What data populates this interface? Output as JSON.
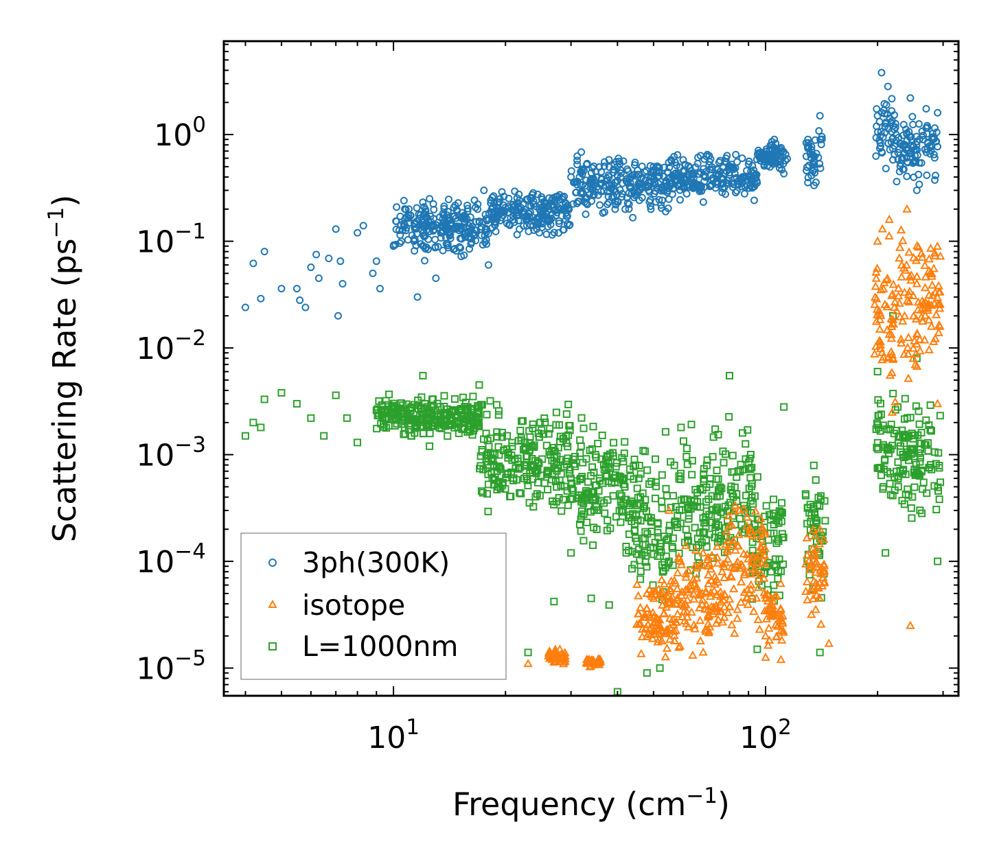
{
  "chart_data": {
    "type": "scatter",
    "xscale": "log",
    "yscale": "log",
    "xlim": [
      3.5,
      330
    ],
    "ylim": [
      5.5e-06,
      7.5
    ],
    "xlabel": {
      "text": "Frequency (cm",
      "sup": "−1",
      "tail": ")"
    },
    "ylabel": {
      "text": "Scattering Rate (ps",
      "sup": "−1",
      "tail": ")"
    },
    "xticks": [
      {
        "value": 10,
        "base": "10",
        "exp": "1"
      },
      {
        "value": 100,
        "base": "10",
        "exp": "2"
      }
    ],
    "yticks": [
      {
        "value": 1e-05,
        "base": "10",
        "exp": "−5"
      },
      {
        "value": 0.0001,
        "base": "10",
        "exp": "−4"
      },
      {
        "value": 0.001,
        "base": "10",
        "exp": "−3"
      },
      {
        "value": 0.01,
        "base": "10",
        "exp": "−2"
      },
      {
        "value": 0.1,
        "base": "10",
        "exp": "−1"
      },
      {
        "value": 1,
        "base": "10",
        "exp": "0"
      }
    ],
    "legend": {
      "position": "lower-left"
    },
    "series": [
      {
        "name": "3ph(300K)",
        "marker": "circle",
        "color": "#1f77b4",
        "approx_points": [
          [
            4,
            0.024
          ],
          [
            4.2,
            0.062
          ],
          [
            4.4,
            0.029
          ],
          [
            4.5,
            0.08
          ],
          [
            5,
            0.036
          ],
          [
            5.5,
            0.036
          ],
          [
            5.6,
            0.028
          ],
          [
            5.8,
            0.024
          ],
          [
            6,
            0.057
          ],
          [
            6.2,
            0.075
          ],
          [
            6.3,
            0.045
          ],
          [
            6.7,
            0.069
          ],
          [
            7,
            0.13
          ],
          [
            7.1,
            0.02
          ],
          [
            7.2,
            0.065
          ],
          [
            7.3,
            0.04
          ],
          [
            8,
            0.12
          ],
          [
            8.3,
            0.14
          ],
          [
            8.8,
            0.05
          ],
          [
            9,
            0.065
          ],
          [
            9.2,
            0.036
          ],
          [
            10,
            0.09
          ],
          [
            10.5,
            0.1
          ],
          [
            11,
            0.2
          ],
          [
            11.6,
            0.03
          ],
          [
            12.5,
            0.25
          ],
          [
            13,
            0.045
          ],
          [
            14,
            0.19
          ],
          [
            17.5,
            0.3
          ],
          [
            18,
            0.06
          ],
          [
            25,
            0.26
          ],
          [
            30,
            0.4
          ],
          [
            40,
            0.5
          ],
          [
            50,
            0.5
          ],
          [
            60,
            0.45
          ],
          [
            75,
            0.55
          ],
          [
            90,
            0.4
          ],
          [
            100,
            0.6
          ],
          [
            112,
            0.43
          ],
          [
            130,
            0.9
          ],
          [
            140,
            1.5
          ],
          [
            200,
            1.5
          ],
          [
            205,
            3.8
          ],
          [
            220,
            1.2
          ],
          [
            245,
            2.2
          ],
          [
            255,
            0.3
          ],
          [
            290,
            1.6
          ]
        ],
        "bands": [
          {
            "x": [
              10,
              18
            ],
            "ylo": 0.06,
            "yhi": 0.3
          },
          {
            "x": [
              18,
              30
            ],
            "ylo": 0.1,
            "yhi": 0.35
          },
          {
            "x": [
              30,
              55
            ],
            "ylo": 0.15,
            "yhi": 0.75
          },
          {
            "x": [
              55,
              95
            ],
            "ylo": 0.2,
            "yhi": 0.8
          },
          {
            "x": [
              95,
              115
            ],
            "ylo": 0.4,
            "yhi": 1.0
          },
          {
            "x": [
              128,
              142
            ],
            "ylo": 0.22,
            "yhi": 1.6
          },
          {
            "x": [
              198,
              225
            ],
            "ylo": 0.3,
            "yhi": 3.8
          },
          {
            "x": [
              225,
              290
            ],
            "ylo": 0.25,
            "yhi": 2.0
          }
        ]
      },
      {
        "name": "isotope",
        "marker": "triangle",
        "color": "#ff7f0e",
        "approx_points": [
          [
            23,
            1.1e-05
          ],
          [
            27,
            1.3e-05
          ],
          [
            28,
            1.5e-05
          ],
          [
            34,
            1.1e-05
          ],
          [
            35,
            1.1e-05
          ],
          [
            48,
            5e-05
          ],
          [
            55,
            0.0003
          ],
          [
            70,
            3e-05
          ],
          [
            85,
            0.0003
          ],
          [
            100,
            2e-05
          ],
          [
            110,
            1.2e-05
          ],
          [
            140,
            0.0002
          ],
          [
            148,
            1.7e-05
          ],
          [
            200,
            0.1
          ],
          [
            215,
            0.16
          ],
          [
            220,
            0.008
          ],
          [
            240,
            0.2
          ],
          [
            245,
            2.5e-05
          ],
          [
            255,
            0.04
          ],
          [
            290,
            0.003
          ]
        ],
        "bands": [
          {
            "x": [
              26,
              29
            ],
            "ylo": 1e-05,
            "yhi": 1.6e-05
          },
          {
            "x": [
              33,
              36
            ],
            "ylo": 1e-05,
            "yhi": 1.3e-05
          },
          {
            "x": [
              45,
              58
            ],
            "ylo": 1e-05,
            "yhi": 0.0001
          },
          {
            "x": [
              58,
              78
            ],
            "ylo": 1e-05,
            "yhi": 0.00025
          },
          {
            "x": [
              78,
              100
            ],
            "ylo": 1.5e-05,
            "yhi": 0.0005
          },
          {
            "x": [
              100,
              112
            ],
            "ylo": 1e-05,
            "yhi": 0.0001
          },
          {
            "x": [
              128,
              145
            ],
            "ylo": 2e-05,
            "yhi": 0.0003
          },
          {
            "x": [
              195,
              225
            ],
            "ylo": 0.002,
            "yhi": 0.16
          },
          {
            "x": [
              225,
              295
            ],
            "ylo": 0.003,
            "yhi": 0.22
          }
        ]
      },
      {
        "name": "L=1000nm",
        "marker": "square",
        "color": "#2ca02c",
        "approx_points": [
          [
            4,
            0.0015
          ],
          [
            4.2,
            0.002
          ],
          [
            4.4,
            0.0018
          ],
          [
            4.5,
            0.0033
          ],
          [
            5,
            0.0038
          ],
          [
            5.5,
            0.003
          ],
          [
            6,
            0.0022
          ],
          [
            6.5,
            0.0015
          ],
          [
            7,
            0.0036
          ],
          [
            7.5,
            0.0022
          ],
          [
            8,
            0.0013
          ],
          [
            9,
            0.0026
          ],
          [
            10,
            0.0025
          ],
          [
            12,
            0.0055
          ],
          [
            12.5,
            0.0012
          ],
          [
            17,
            0.0045
          ],
          [
            23,
            1.4e-05
          ],
          [
            27,
            4.2e-05
          ],
          [
            30,
            0.00012
          ],
          [
            34,
            4.5e-05
          ],
          [
            38,
            3.9e-05
          ],
          [
            40,
            6e-06
          ],
          [
            48,
            9e-06
          ],
          [
            52,
            1e-05
          ],
          [
            55,
            0.0001
          ],
          [
            80,
            0.0055
          ],
          [
            95,
            1.5e-05
          ],
          [
            112,
            0.0028
          ],
          [
            140,
            1.4e-05
          ],
          [
            200,
            0.006
          ],
          [
            210,
            0.00012
          ],
          [
            220,
            0.02
          ],
          [
            255,
            0.008
          ],
          [
            290,
            0.0001
          ]
        ],
        "bands": [
          {
            "x": [
              9,
              17
            ],
            "ylo": 0.0013,
            "yhi": 0.004
          },
          {
            "x": [
              17,
              30
            ],
            "ylo": 0.0002,
            "yhi": 0.004
          },
          {
            "x": [
              30,
              42
            ],
            "ylo": 0.0001,
            "yhi": 0.003
          },
          {
            "x": [
              42,
              58
            ],
            "ylo": 3e-05,
            "yhi": 0.002
          },
          {
            "x": [
              58,
              78
            ],
            "ylo": 5e-05,
            "yhi": 0.003
          },
          {
            "x": [
              78,
              92
            ],
            "ylo": 5e-05,
            "yhi": 0.003
          },
          {
            "x": [
              92,
              112
            ],
            "ylo": 2e-05,
            "yhi": 0.001
          },
          {
            "x": [
              128,
              145
            ],
            "ylo": 4e-05,
            "yhi": 0.001
          },
          {
            "x": [
              198,
              225
            ],
            "ylo": 0.0002,
            "yhi": 0.008
          },
          {
            "x": [
              225,
              295
            ],
            "ylo": 0.00012,
            "yhi": 0.005
          }
        ]
      }
    ]
  }
}
